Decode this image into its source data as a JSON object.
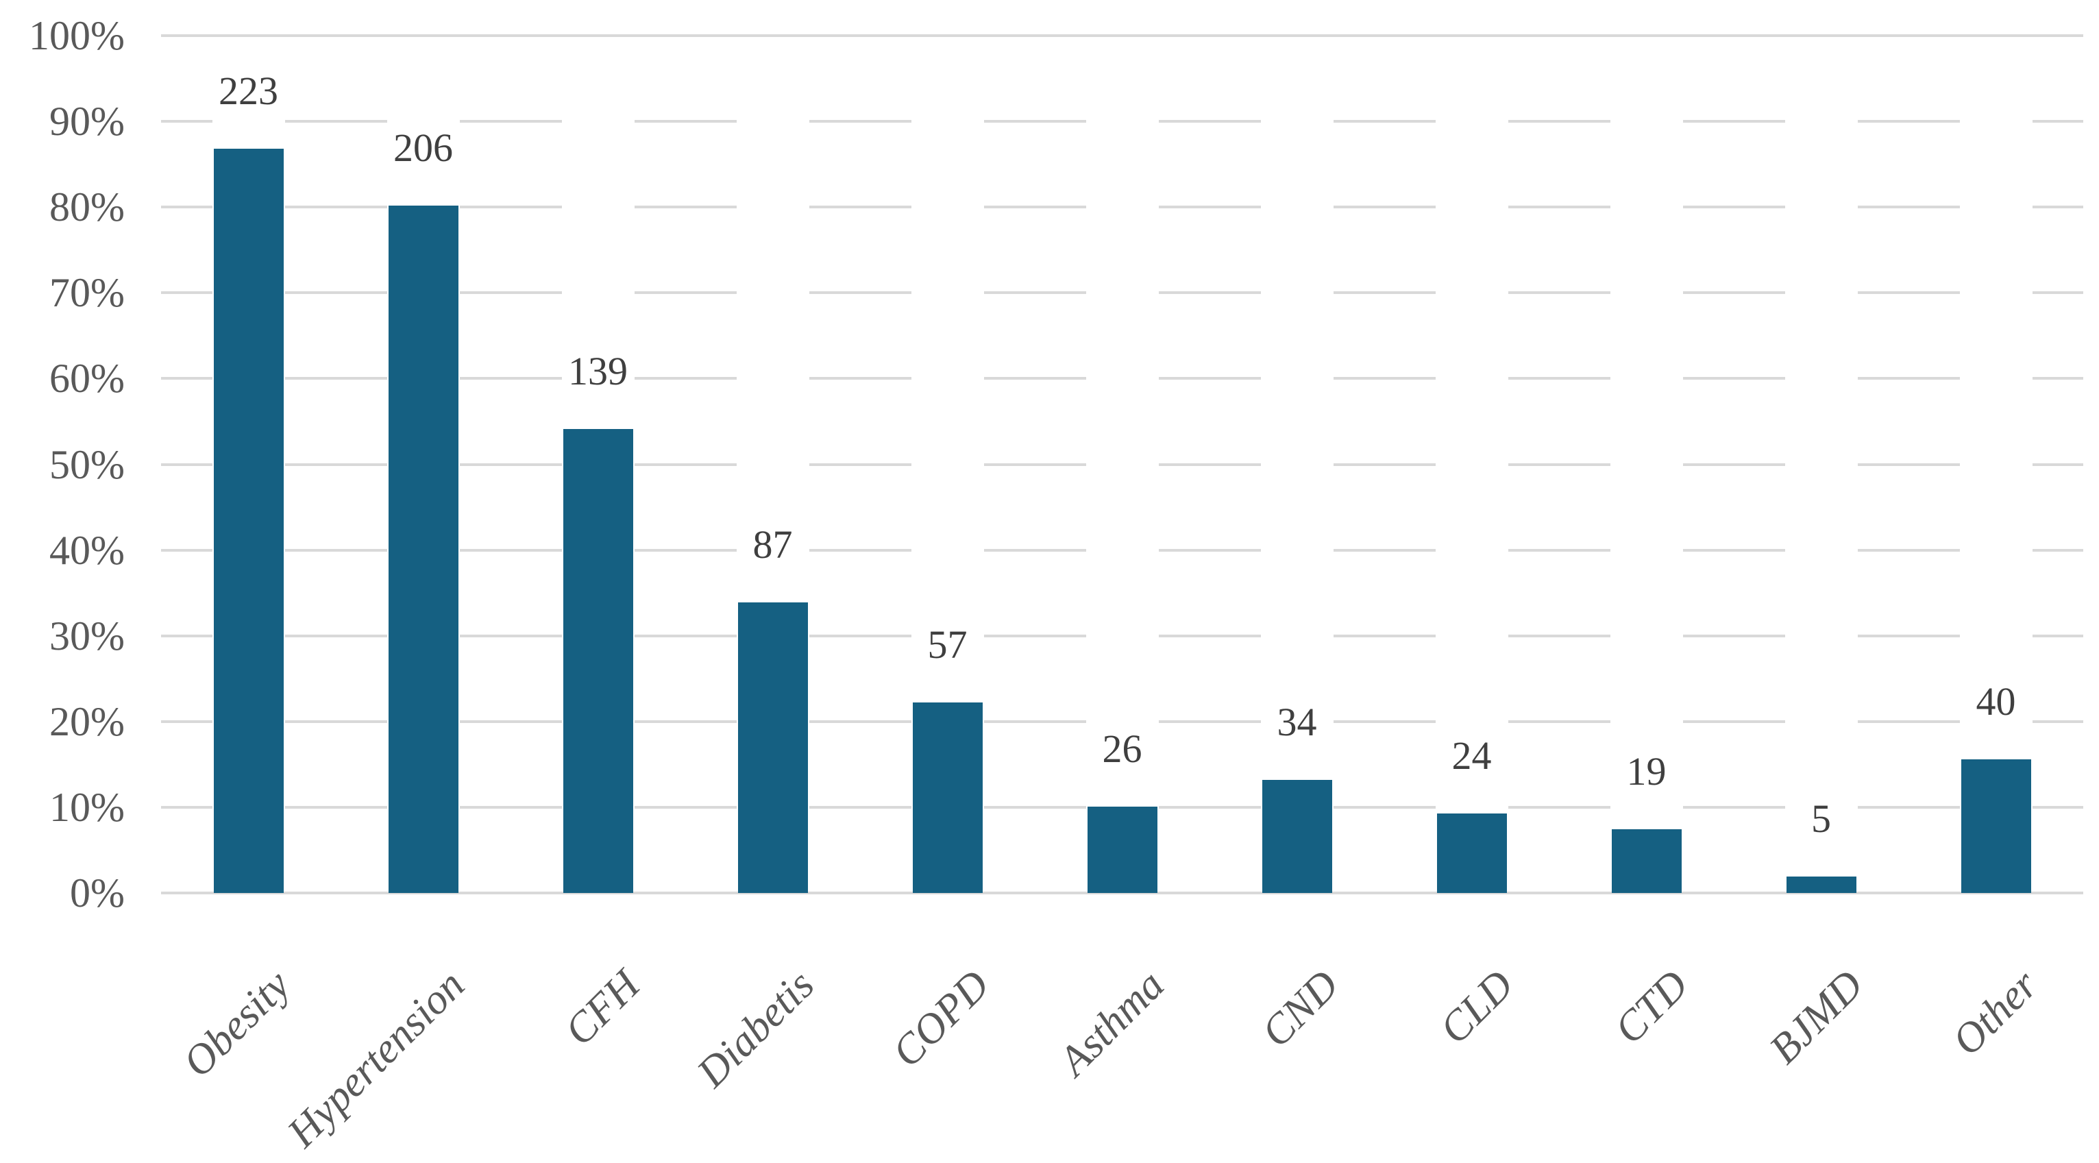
{
  "chart_data": {
    "type": "bar",
    "title": "",
    "categories": [
      "Obesity",
      "Hypertension",
      "CFH",
      "Diabetis",
      "COPD",
      "Asthma",
      "CND",
      "CLD",
      "CTD",
      "BJMD",
      "Other"
    ],
    "values": [
      223,
      206,
      139,
      87,
      57,
      26,
      34,
      24,
      19,
      5,
      40
    ],
    "percents": [
      86.8,
      80.2,
      54.1,
      33.9,
      22.2,
      10.1,
      13.2,
      9.3,
      7.4,
      1.9,
      15.6
    ],
    "data_label_texts": [
      "223",
      "206",
      "139",
      "87",
      "57",
      "26",
      "34",
      "24",
      "19",
      "5",
      "40"
    ],
    "xlabel": "",
    "ylabel": "",
    "y_axis": {
      "min": 0,
      "max": 100,
      "tick_step": 10,
      "tick_labels": [
        "0%",
        "10%",
        "20%",
        "30%",
        "40%",
        "50%",
        "60%",
        "70%",
        "80%",
        "90%",
        "100%"
      ]
    },
    "legend": "none",
    "grid": "horizontal-major, light gray, broken at bar columns, solid at 0% and 100%",
    "data_labels_position": "outside-end",
    "x_label_rotation_deg": -45,
    "colors": {
      "bar": "#156082",
      "gridline": "#D9D9D9",
      "axis_text": "#595959",
      "data_label_text": "#3F3F3F",
      "background": "#FFFFFF"
    }
  }
}
